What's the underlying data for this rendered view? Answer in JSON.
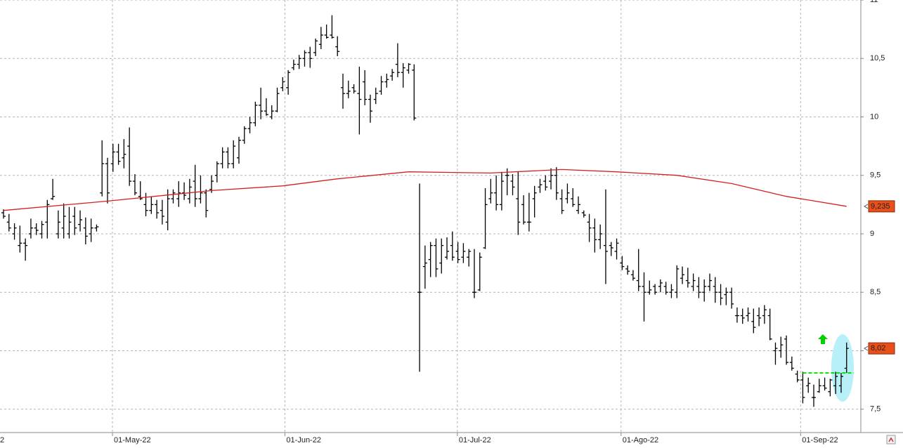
{
  "chart_data": {
    "type": "ohlc",
    "color": "#000000",
    "x": [
      0,
      1,
      2,
      3,
      4,
      5,
      6,
      7,
      8,
      9,
      10,
      11,
      12,
      13,
      14,
      15,
      16,
      17,
      18,
      19,
      20,
      21,
      22,
      23,
      24,
      25,
      26,
      27,
      28,
      29,
      30,
      31,
      32,
      33,
      34,
      35,
      36,
      37,
      38,
      39,
      40,
      41,
      42,
      43,
      44,
      45,
      46,
      47,
      48,
      49,
      50,
      51,
      52,
      53,
      54,
      55,
      56,
      57,
      58,
      59,
      60,
      61,
      62,
      63,
      64,
      65,
      66,
      67,
      68,
      69,
      70,
      71,
      72,
      73,
      74,
      75,
      76,
      77,
      78,
      79,
      80,
      81,
      82,
      83,
      84,
      85,
      86,
      87,
      88,
      89,
      90,
      91,
      92,
      93,
      94,
      95,
      96,
      97,
      98,
      99,
      100,
      101,
      102,
      103,
      104,
      105,
      106,
      107,
      108,
      109,
      110,
      111,
      112,
      113,
      114,
      115,
      116,
      117,
      118,
      119,
      120,
      121,
      122,
      123,
      124,
      125,
      126,
      127,
      128,
      129,
      130,
      131,
      132,
      133,
      134,
      135,
      136,
      137,
      138,
      139,
      140,
      141,
      142,
      143,
      144,
      145,
      146,
      147,
      148,
      149,
      150,
      151,
      152,
      153,
      154
    ],
    "open": [
      9.18,
      9.1,
      9.0,
      8.9,
      8.92,
      9.0,
      9.05,
      9.0,
      9.1,
      9.3,
      9.0,
      9.05,
      9.0,
      9.15,
      9.08,
      9.05,
      9.0,
      9.05,
      9.35,
      9.6,
      9.6,
      9.7,
      9.65,
      9.75,
      9.45,
      9.32,
      9.25,
      9.2,
      9.25,
      9.2,
      9.1,
      9.3,
      9.3,
      9.35,
      9.3,
      9.45,
      9.3,
      9.35,
      9.38,
      9.5,
      9.6,
      9.7,
      9.6,
      9.65,
      9.8,
      9.9,
      9.95,
      10.1,
      10.05,
      10.0,
      10.05,
      10.25,
      10.25,
      10.42,
      10.45,
      10.5,
      10.55,
      10.55,
      10.62,
      10.7,
      10.7,
      10.6,
      10.25,
      10.2,
      10.25,
      10.2,
      10.3,
      10.15,
      10.15,
      10.22,
      10.3,
      10.35,
      10.45,
      10.38,
      10.4,
      10.4,
      8.5,
      8.72,
      8.78,
      8.9,
      8.75,
      8.8,
      8.9,
      8.85,
      8.8,
      8.8,
      8.5,
      8.52,
      8.88,
      9.3,
      9.35,
      9.25,
      9.5,
      9.45,
      9.3,
      9.25,
      9.1,
      9.3,
      9.4,
      9.45,
      9.45,
      9.5,
      9.3,
      9.3,
      9.3,
      9.2,
      9.18,
      9.1,
      9.05,
      8.95,
      8.9,
      8.9,
      8.85,
      8.75,
      8.7,
      8.65,
      8.6,
      8.55,
      8.5,
      8.55,
      8.55,
      8.55,
      8.5,
      8.5,
      8.62,
      8.6,
      8.55,
      8.55,
      8.5,
      8.55,
      8.55,
      8.5,
      8.48,
      8.5,
      8.3,
      8.3,
      8.3,
      8.25,
      8.3,
      8.3,
      8.3,
      8.0,
      8.0,
      8.1,
      7.9,
      7.8,
      7.75,
      7.7,
      7.6,
      7.65,
      7.7,
      7.65,
      7.7,
      7.7,
      7.85
    ],
    "high": [
      9.21,
      9.17,
      9.09,
      9.07,
      8.96,
      9.13,
      9.09,
      9.11,
      9.29,
      9.47,
      9.2,
      9.26,
      9.23,
      9.23,
      9.2,
      9.14,
      9.13,
      9.08,
      9.8,
      9.65,
      9.77,
      9.77,
      9.81,
      9.91,
      9.51,
      9.45,
      9.35,
      9.32,
      9.29,
      9.29,
      9.38,
      9.38,
      9.45,
      9.44,
      9.47,
      9.59,
      9.5,
      9.38,
      9.5,
      9.62,
      9.74,
      9.74,
      9.8,
      9.83,
      9.92,
      10.0,
      10.13,
      10.25,
      10.16,
      10.1,
      10.25,
      10.34,
      10.4,
      10.49,
      10.53,
      10.57,
      10.6,
      10.67,
      10.77,
      10.79,
      10.87,
      10.69,
      10.37,
      10.31,
      10.28,
      10.43,
      10.4,
      10.19,
      10.25,
      10.35,
      10.37,
      10.41,
      10.63,
      10.46,
      10.46,
      10.45,
      9.43,
      8.9,
      8.93,
      8.96,
      8.96,
      8.97,
      9.02,
      8.93,
      8.92,
      8.87,
      8.87,
      8.84,
      9.39,
      9.47,
      9.5,
      9.53,
      9.56,
      9.51,
      9.53,
      9.33,
      9.35,
      9.41,
      9.47,
      9.5,
      9.56,
      9.57,
      9.38,
      9.43,
      9.39,
      9.32,
      9.2,
      9.17,
      9.13,
      9.08,
      9.38,
      8.93,
      8.96,
      8.81,
      8.73,
      8.69,
      8.87,
      8.67,
      8.6,
      8.57,
      8.61,
      8.59,
      8.57,
      8.73,
      8.72,
      8.71,
      8.66,
      8.63,
      8.61,
      8.66,
      8.63,
      8.57,
      8.54,
      8.54,
      8.37,
      8.36,
      8.37,
      8.36,
      8.37,
      8.39,
      8.36,
      8.07,
      8.12,
      8.13,
      7.95,
      7.83,
      7.82,
      7.77,
      7.71,
      7.76,
      7.77,
      7.76,
      7.82,
      7.81,
      8.07
    ],
    "low": [
      9.13,
      9.02,
      8.95,
      8.84,
      8.77,
      8.96,
      8.99,
      8.96,
      8.96,
      9.29,
      8.96,
      8.96,
      8.96,
      8.99,
      9.02,
      8.91,
      8.93,
      9.02,
      9.32,
      9.26,
      9.53,
      9.59,
      9.56,
      9.41,
      9.33,
      9.29,
      9.15,
      9.17,
      9.13,
      9.08,
      9.03,
      9.26,
      9.23,
      9.29,
      9.26,
      9.23,
      9.26,
      9.14,
      9.35,
      9.44,
      9.56,
      9.56,
      9.56,
      9.6,
      9.77,
      9.86,
      9.92,
      9.98,
      10.01,
      9.98,
      10.04,
      10.22,
      10.19,
      10.4,
      10.41,
      10.43,
      10.42,
      10.52,
      10.58,
      10.67,
      10.67,
      10.52,
      10.07,
      10.16,
      10.2,
      9.85,
      10.1,
      9.95,
      10.11,
      10.19,
      10.25,
      10.31,
      10.34,
      10.25,
      10.37,
      9.97,
      7.82,
      8.53,
      8.63,
      8.63,
      8.66,
      8.78,
      8.77,
      8.75,
      8.75,
      8.72,
      8.45,
      8.51,
      8.87,
      9.26,
      9.2,
      9.2,
      9.33,
      9.33,
      8.99,
      9.08,
      9.02,
      9.14,
      9.35,
      9.37,
      9.38,
      9.29,
      9.17,
      9.26,
      9.23,
      9.17,
      9.14,
      8.93,
      8.84,
      8.87,
      8.57,
      8.81,
      8.78,
      8.69,
      8.65,
      8.6,
      8.51,
      8.25,
      8.48,
      8.48,
      8.5,
      8.48,
      8.45,
      8.45,
      8.57,
      8.54,
      8.51,
      8.45,
      8.42,
      8.51,
      8.41,
      8.39,
      8.39,
      8.36,
      8.24,
      8.23,
      8.25,
      8.15,
      8.21,
      8.23,
      8.09,
      7.88,
      7.94,
      7.88,
      7.83,
      7.73,
      7.55,
      7.64,
      7.52,
      7.64,
      7.66,
      7.61,
      7.63,
      7.64,
      7.81
    ],
    "close": [
      9.15,
      9.05,
      9.05,
      8.92,
      8.9,
      9.05,
      9.03,
      9.08,
      9.25,
      9.32,
      9.1,
      9.15,
      9.1,
      9.05,
      9.12,
      8.98,
      9.05,
      9.06,
      9.6,
      9.35,
      9.7,
      9.62,
      9.68,
      9.45,
      9.35,
      9.3,
      9.2,
      9.25,
      9.18,
      9.15,
      9.3,
      9.35,
      9.35,
      9.33,
      9.4,
      9.3,
      9.35,
      9.2,
      9.45,
      9.6,
      9.7,
      9.6,
      9.75,
      9.8,
      9.9,
      9.95,
      10.1,
      10.05,
      10.02,
      10.05,
      10.2,
      10.3,
      10.38,
      10.45,
      10.5,
      10.55,
      10.5,
      10.65,
      10.7,
      10.68,
      10.68,
      10.56,
      10.2,
      10.22,
      10.22,
      10.15,
      10.15,
      10.05,
      10.2,
      10.3,
      10.32,
      10.38,
      10.38,
      10.42,
      10.45,
      9.99,
      8.5,
      8.75,
      8.9,
      8.7,
      8.9,
      8.85,
      8.8,
      8.78,
      8.85,
      8.85,
      8.5,
      8.8,
      9.25,
      9.35,
      9.25,
      9.45,
      9.5,
      9.4,
      9.1,
      9.1,
      9.1,
      9.35,
      9.42,
      9.4,
      9.5,
      9.35,
      9.2,
      9.35,
      9.25,
      9.25,
      9.16,
      9.05,
      8.95,
      9.0,
      8.85,
      8.88,
      8.92,
      8.72,
      8.68,
      8.62,
      8.55,
      8.5,
      8.52,
      8.5,
      8.58,
      8.5,
      8.52,
      8.7,
      8.65,
      8.58,
      8.6,
      8.5,
      8.55,
      8.6,
      8.5,
      8.45,
      8.5,
      8.4,
      8.3,
      8.28,
      8.32,
      8.2,
      8.28,
      8.35,
      8.1,
      8.02,
      8.05,
      7.9,
      7.85,
      7.75,
      7.6,
      7.72,
      7.6,
      7.7,
      7.68,
      7.75,
      7.78,
      7.78,
      8.02
    ],
    "moving_average": {
      "color": "#d42020",
      "x": [
        0,
        19,
        38,
        51,
        61,
        74,
        89,
        102,
        112,
        123,
        133,
        143,
        154
      ],
      "values": [
        9.2,
        9.28,
        9.37,
        9.41,
        9.47,
        9.53,
        9.52,
        9.55,
        9.53,
        9.5,
        9.43,
        9.32,
        9.235
      ]
    },
    "support": {
      "value": 7.81,
      "from": 146,
      "to": 155.3,
      "color": "#00e000"
    },
    "last_labels": [
      {
        "value": 9.235,
        "label": "9,235",
        "color": "#e8501a"
      },
      {
        "value": 8.02,
        "label": "8,02",
        "color": "#e8501a"
      }
    ],
    "xlim": [
      -0.64,
      156.6
    ],
    "ylim": [
      7.3,
      11
    ],
    "xticks": [
      {
        "value": -1.6,
        "label": "2"
      },
      {
        "value": 19.9,
        "label": "01-May-22"
      },
      {
        "value": 51.4,
        "label": "01-Jun-22"
      },
      {
        "value": 82.9,
        "label": "01-Jul-22"
      },
      {
        "value": 112.8,
        "label": "01-Ago-22"
      },
      {
        "value": 145.6,
        "label": "01-Sep-22"
      }
    ],
    "yticks": [
      {
        "value": 7.5,
        "label": "7,5"
      },
      8,
      {
        "value": 8.5,
        "label": "8,5"
      },
      9,
      {
        "value": 9.5,
        "label": "9,5"
      },
      10,
      {
        "value": 10.5,
        "label": "10,5"
      },
      11
    ],
    "grid": true
  }
}
